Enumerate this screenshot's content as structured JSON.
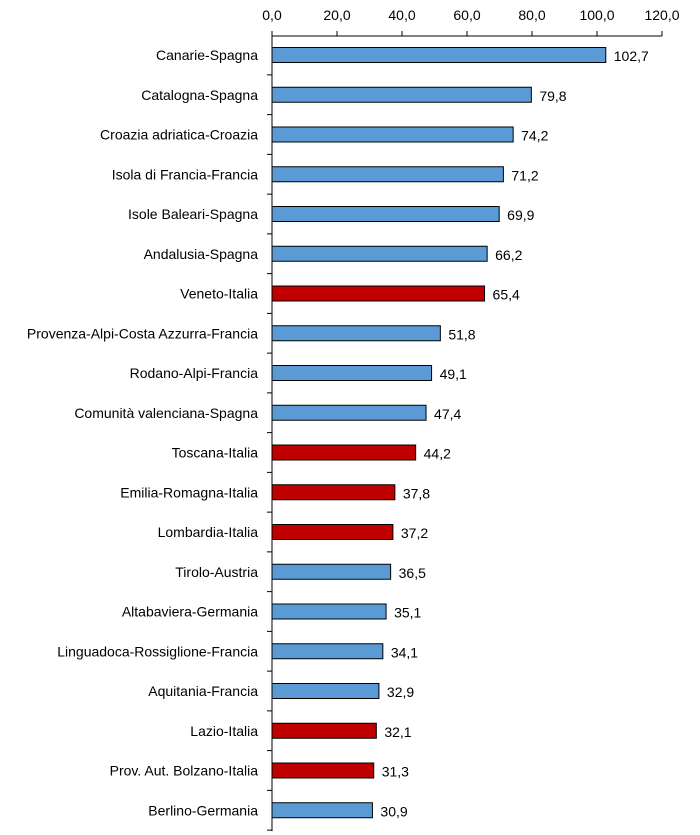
{
  "chart_data": {
    "type": "bar",
    "orientation": "horizontal",
    "title": "",
    "xlabel": "",
    "ylabel": "",
    "xlim": [
      0,
      120
    ],
    "ticks": [
      "0,0",
      "20,0",
      "40,0",
      "60,0",
      "80,0",
      "100,0",
      "120,0"
    ],
    "tick_values": [
      0,
      20,
      40,
      60,
      80,
      100,
      120
    ],
    "grid": false,
    "axis_position": "top",
    "colors": {
      "default": "#5B9BD5",
      "italia": "#C00000",
      "outline": "#000000"
    },
    "categories": [
      "Canarie-Spagna",
      "Catalogna-Spagna",
      "Croazia adriatica-Croazia",
      "Isola di Francia-Francia",
      "Isole Baleari-Spagna",
      "Andalusia-Spagna",
      "Veneto-Italia",
      "Provenza-Alpi-Costa Azzurra-Francia",
      "Rodano-Alpi-Francia",
      "Comunità valenciana-Spagna",
      "Toscana-Italia",
      "Emilia-Romagna-Italia",
      "Lombardia-Italia",
      "Tirolo-Austria",
      "Altabaviera-Germania",
      "Linguadoca-Rossiglione-Francia",
      "Aquitania-Francia",
      "Lazio-Italia",
      "Prov. Aut. Bolzano-Italia",
      "Berlino-Germania"
    ],
    "values": [
      102.7,
      79.8,
      74.2,
      71.2,
      69.9,
      66.2,
      65.4,
      51.8,
      49.1,
      47.4,
      44.2,
      37.8,
      37.2,
      36.5,
      35.1,
      34.1,
      32.9,
      32.1,
      31.3,
      30.9
    ],
    "value_labels": [
      "102,7",
      "79,8",
      "74,2",
      "71,2",
      "69,9",
      "66,2",
      "65,4",
      "51,8",
      "49,1",
      "47,4",
      "44,2",
      "37,8",
      "37,2",
      "36,5",
      "35,1",
      "34,1",
      "32,9",
      "32,1",
      "31,3",
      "30,9"
    ],
    "highlight": [
      false,
      false,
      false,
      false,
      false,
      false,
      true,
      false,
      false,
      false,
      true,
      true,
      true,
      false,
      false,
      false,
      false,
      true,
      true,
      false
    ]
  }
}
